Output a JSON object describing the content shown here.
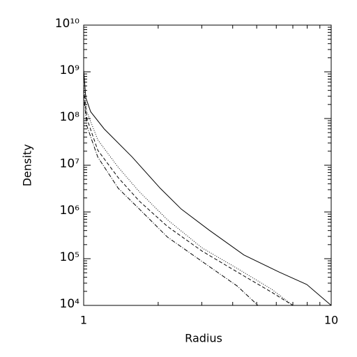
{
  "chart_data": {
    "type": "line",
    "xlabel": "Radius",
    "ylabel": "Density",
    "xscale": "log",
    "yscale": "log",
    "xlim": [
      1,
      10
    ],
    "ylim": [
      10000,
      10000000000
    ],
    "xticks": [
      1,
      10
    ],
    "yticks": [
      {
        "value": 10000,
        "label": "10⁴"
      },
      {
        "value": 100000,
        "label": "10⁵"
      },
      {
        "value": 1000000,
        "label": "10⁶"
      },
      {
        "value": 10000000,
        "label": "10⁷"
      },
      {
        "value": 100000000,
        "label": "10⁸"
      },
      {
        "value": 1000000000,
        "label": "10⁹"
      },
      {
        "value": 10000000000,
        "label": "10¹⁰"
      }
    ],
    "series": [
      {
        "color": "#000000",
        "linestyle": "solid",
        "x": [
          1,
          1.02,
          1.067,
          1.21,
          1.57,
          2.04,
          2.48,
          3.21,
          4.44,
          6.15,
          7.97,
          10
        ],
        "values": [
          1100000000,
          280000000,
          140000000,
          60000000,
          15000000,
          3200000,
          1150000,
          410000,
          120000,
          52000,
          28000,
          10000
        ]
      },
      {
        "color": "#000000",
        "linestyle": "dotted",
        "x": [
          1,
          1.03,
          1.14,
          1.38,
          1.68,
          2.18,
          3.01,
          4.17,
          5.76,
          7.0
        ],
        "values": [
          560000000,
          140000000,
          35000000,
          9000000,
          2700000,
          680000,
          170000,
          62000,
          22000,
          10000
        ]
      },
      {
        "color": "#000000",
        "linestyle": "dashed",
        "x": [
          1,
          1.03,
          1.14,
          1.38,
          1.68,
          2.18,
          3.01,
          4.17,
          5.76,
          7.0
        ],
        "values": [
          420000000,
          100000000,
          21000000,
          5400000,
          1700000,
          490000,
          145000,
          52000,
          19000,
          10000
        ]
      },
      {
        "color": "#000000",
        "linestyle": "dashdot",
        "x": [
          1,
          1.03,
          1.14,
          1.38,
          1.68,
          2.18,
          3.01,
          4.17,
          5.06
        ],
        "values": [
          330000000,
          70000000,
          15000000,
          3200000,
          1150000,
          290000,
          87000,
          26000,
          10000
        ]
      }
    ]
  }
}
